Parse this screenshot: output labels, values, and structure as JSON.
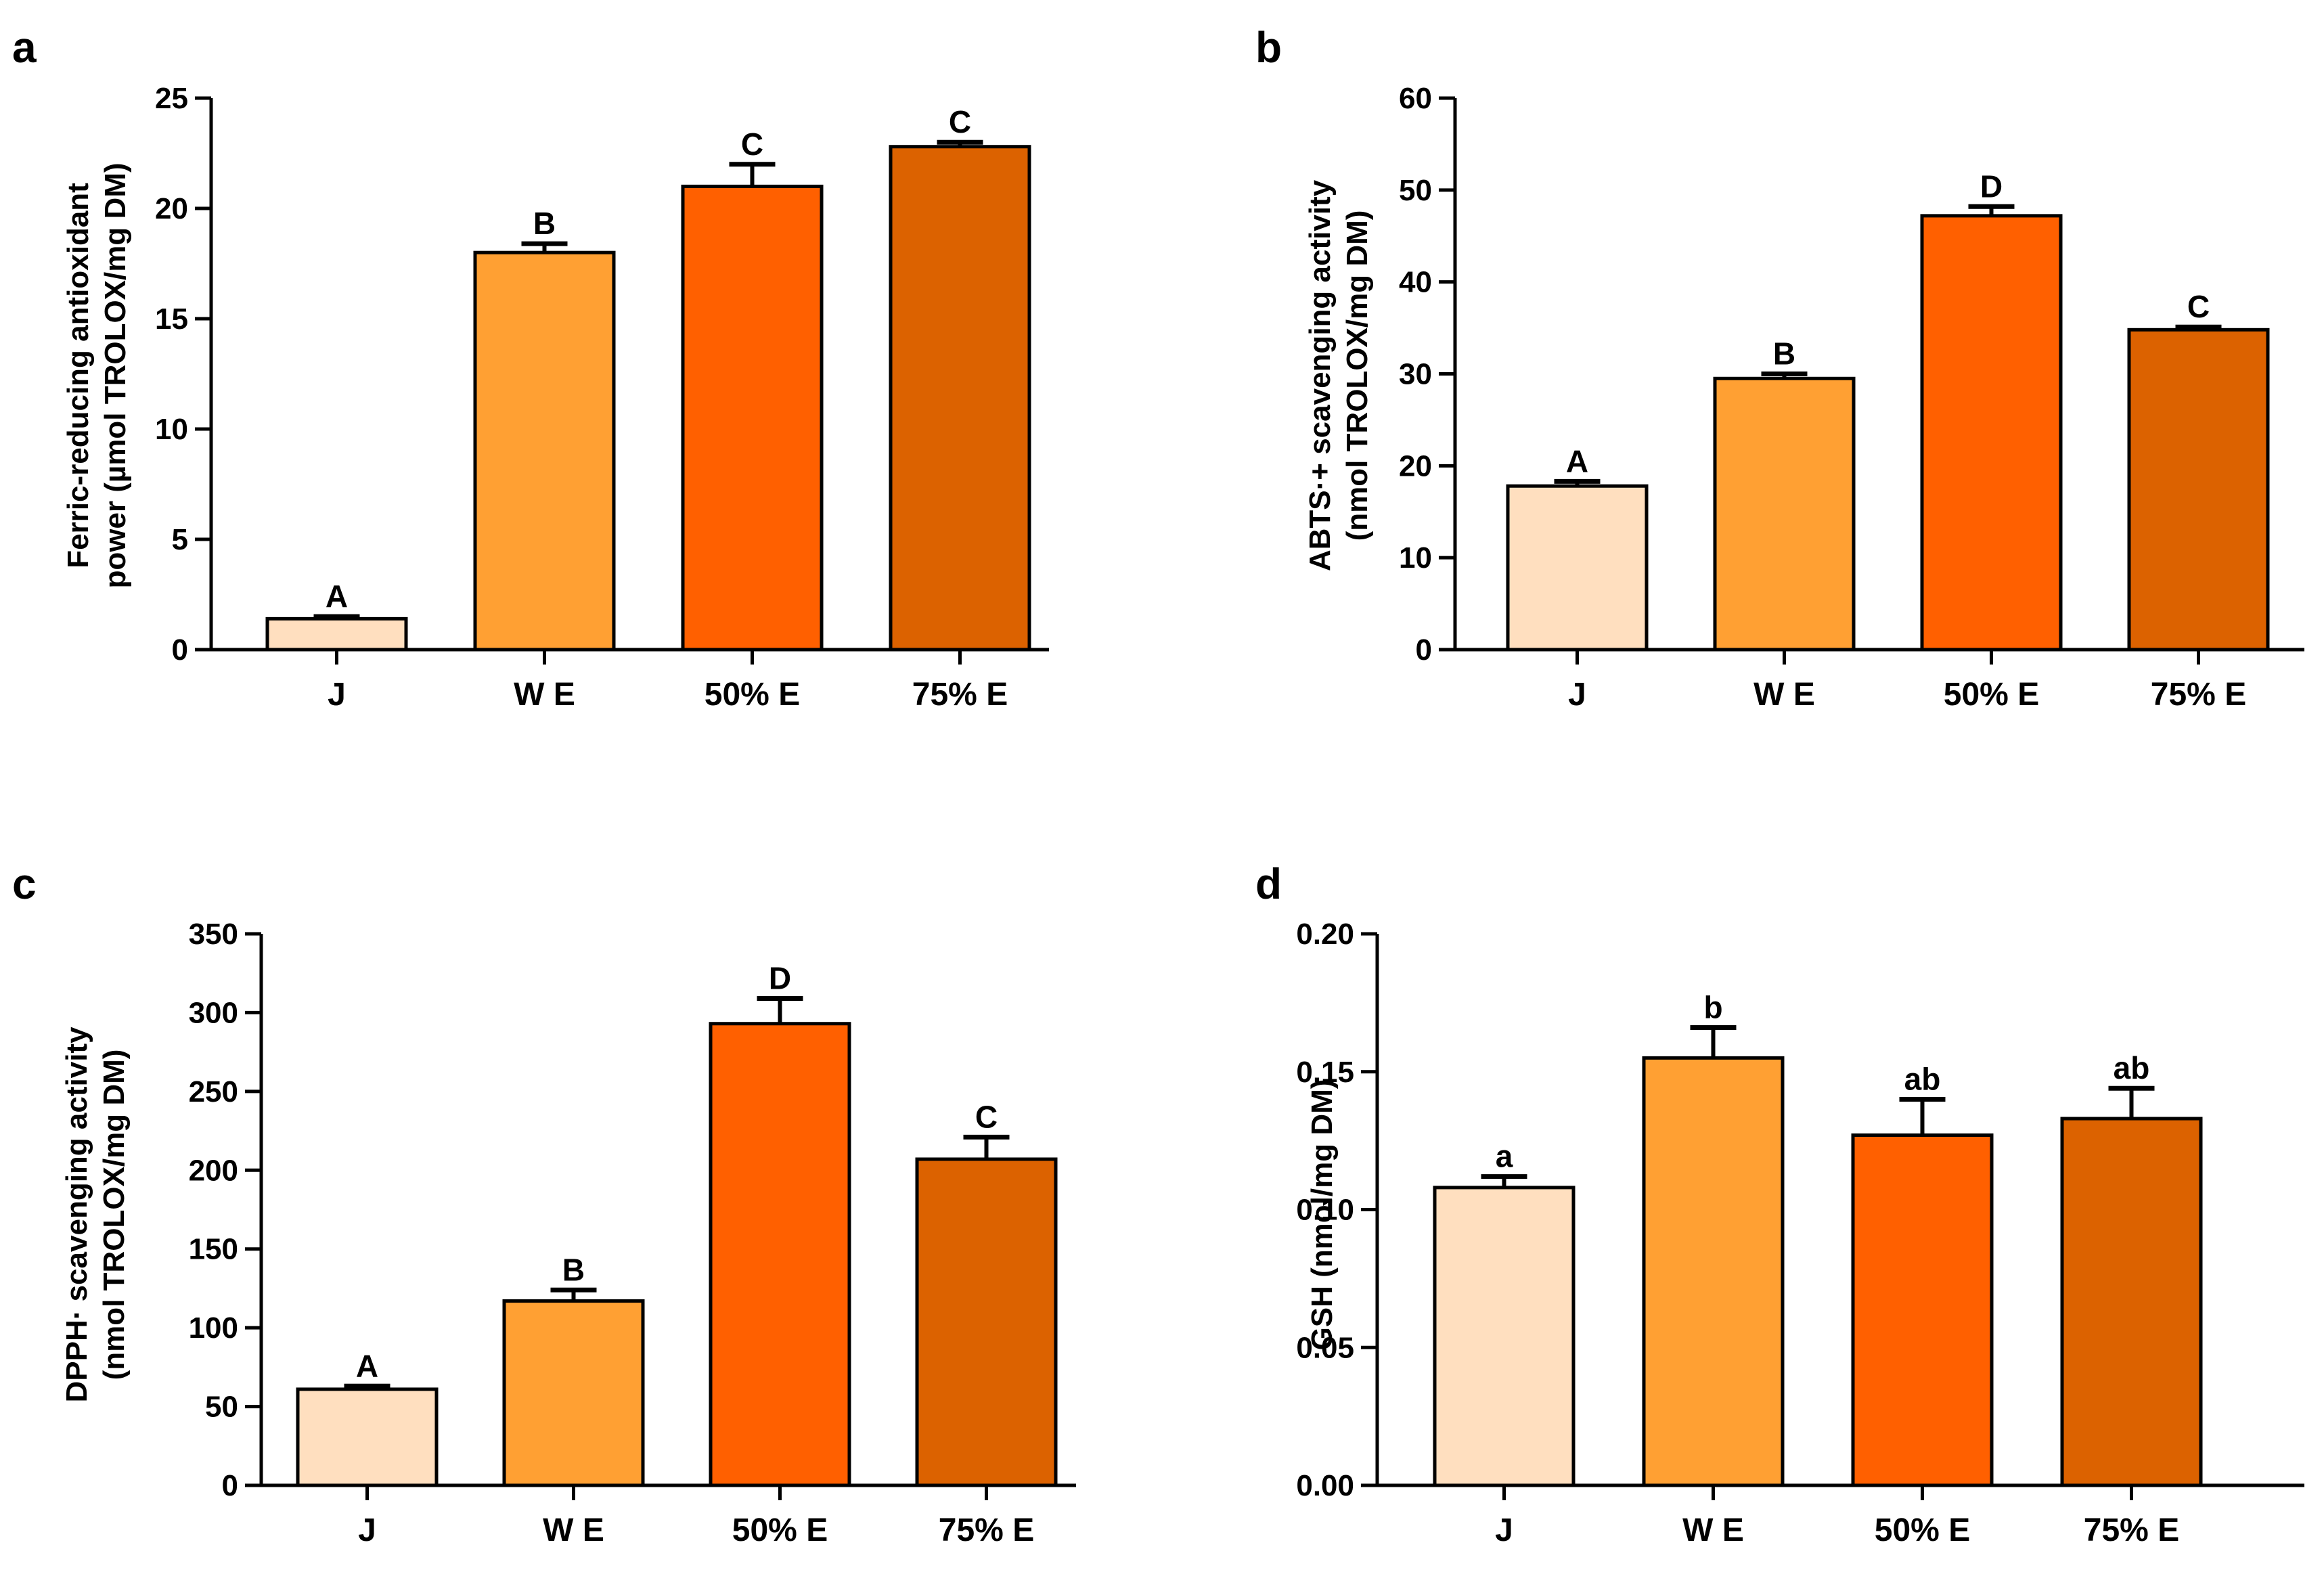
{
  "colors": [
    "#FFDFBF",
    "#FFA033",
    "#FF6000",
    "#DC6200"
  ],
  "chart_data": [
    {
      "panel": "a",
      "type": "bar",
      "categories": [
        "J",
        "W E",
        "50% E",
        "75% E"
      ],
      "values": [
        1.4,
        18.0,
        21.0,
        22.8
      ],
      "errors": [
        0.1,
        0.4,
        1.0,
        0.2
      ],
      "significance": [
        "A",
        "B",
        "C",
        "C"
      ],
      "ylabel_lines": [
        "Ferric-reducing antioxidant",
        "power (µmol TROLOX/mg DM)"
      ],
      "ylim": [
        0,
        25
      ],
      "yticks": [
        0,
        5,
        10,
        15,
        20,
        25
      ],
      "ytick_labels": [
        "0",
        "5",
        "10",
        "15",
        "20",
        "25"
      ]
    },
    {
      "panel": "b",
      "type": "bar",
      "categories": [
        "J",
        "W E",
        "50% E",
        "75% E"
      ],
      "values": [
        17.8,
        29.5,
        47.2,
        34.8
      ],
      "errors": [
        0.5,
        0.5,
        1.0,
        0.3
      ],
      "significance": [
        "A",
        "B",
        "D",
        "C"
      ],
      "ylabel_lines": [
        "ABTS·+ scavenging activity",
        "(nmol TROLOX/mg DM)"
      ],
      "ylim": [
        0,
        60
      ],
      "yticks": [
        0,
        10,
        20,
        30,
        40,
        50,
        60
      ],
      "ytick_labels": [
        "0",
        "10",
        "20",
        "30",
        "40",
        "50",
        "60"
      ]
    },
    {
      "panel": "c",
      "type": "bar",
      "categories": [
        "J",
        "W E",
        "50% E",
        "75% E"
      ],
      "values": [
        61,
        117,
        293,
        207
      ],
      "errors": [
        2,
        7,
        16,
        14
      ],
      "significance": [
        "A",
        "B",
        "D",
        "C"
      ],
      "ylabel_lines": [
        "DPPH· scavenging activity",
        "(nmol TROLOX/mg DM)"
      ],
      "ylim": [
        0,
        350
      ],
      "yticks": [
        0,
        50,
        100,
        150,
        200,
        250,
        300,
        350
      ],
      "ytick_labels": [
        "0",
        "50",
        "100",
        "150",
        "200",
        "250",
        "300",
        "350"
      ]
    },
    {
      "panel": "d",
      "type": "bar",
      "categories": [
        "J",
        "W E",
        "50% E",
        "75% E"
      ],
      "values": [
        0.108,
        0.155,
        0.127,
        0.133
      ],
      "errors": [
        0.004,
        0.011,
        0.013,
        0.011
      ],
      "significance": [
        "a",
        "b",
        "ab",
        "ab"
      ],
      "ylabel_lines": [
        "GSH (nmol/mg DM)"
      ],
      "ylim": [
        0,
        0.2
      ],
      "yticks": [
        0,
        0.05,
        0.1,
        0.15,
        0.2
      ],
      "ytick_labels": [
        "0.00",
        "0.05",
        "0.10",
        "0.15",
        "0.20"
      ]
    }
  ]
}
